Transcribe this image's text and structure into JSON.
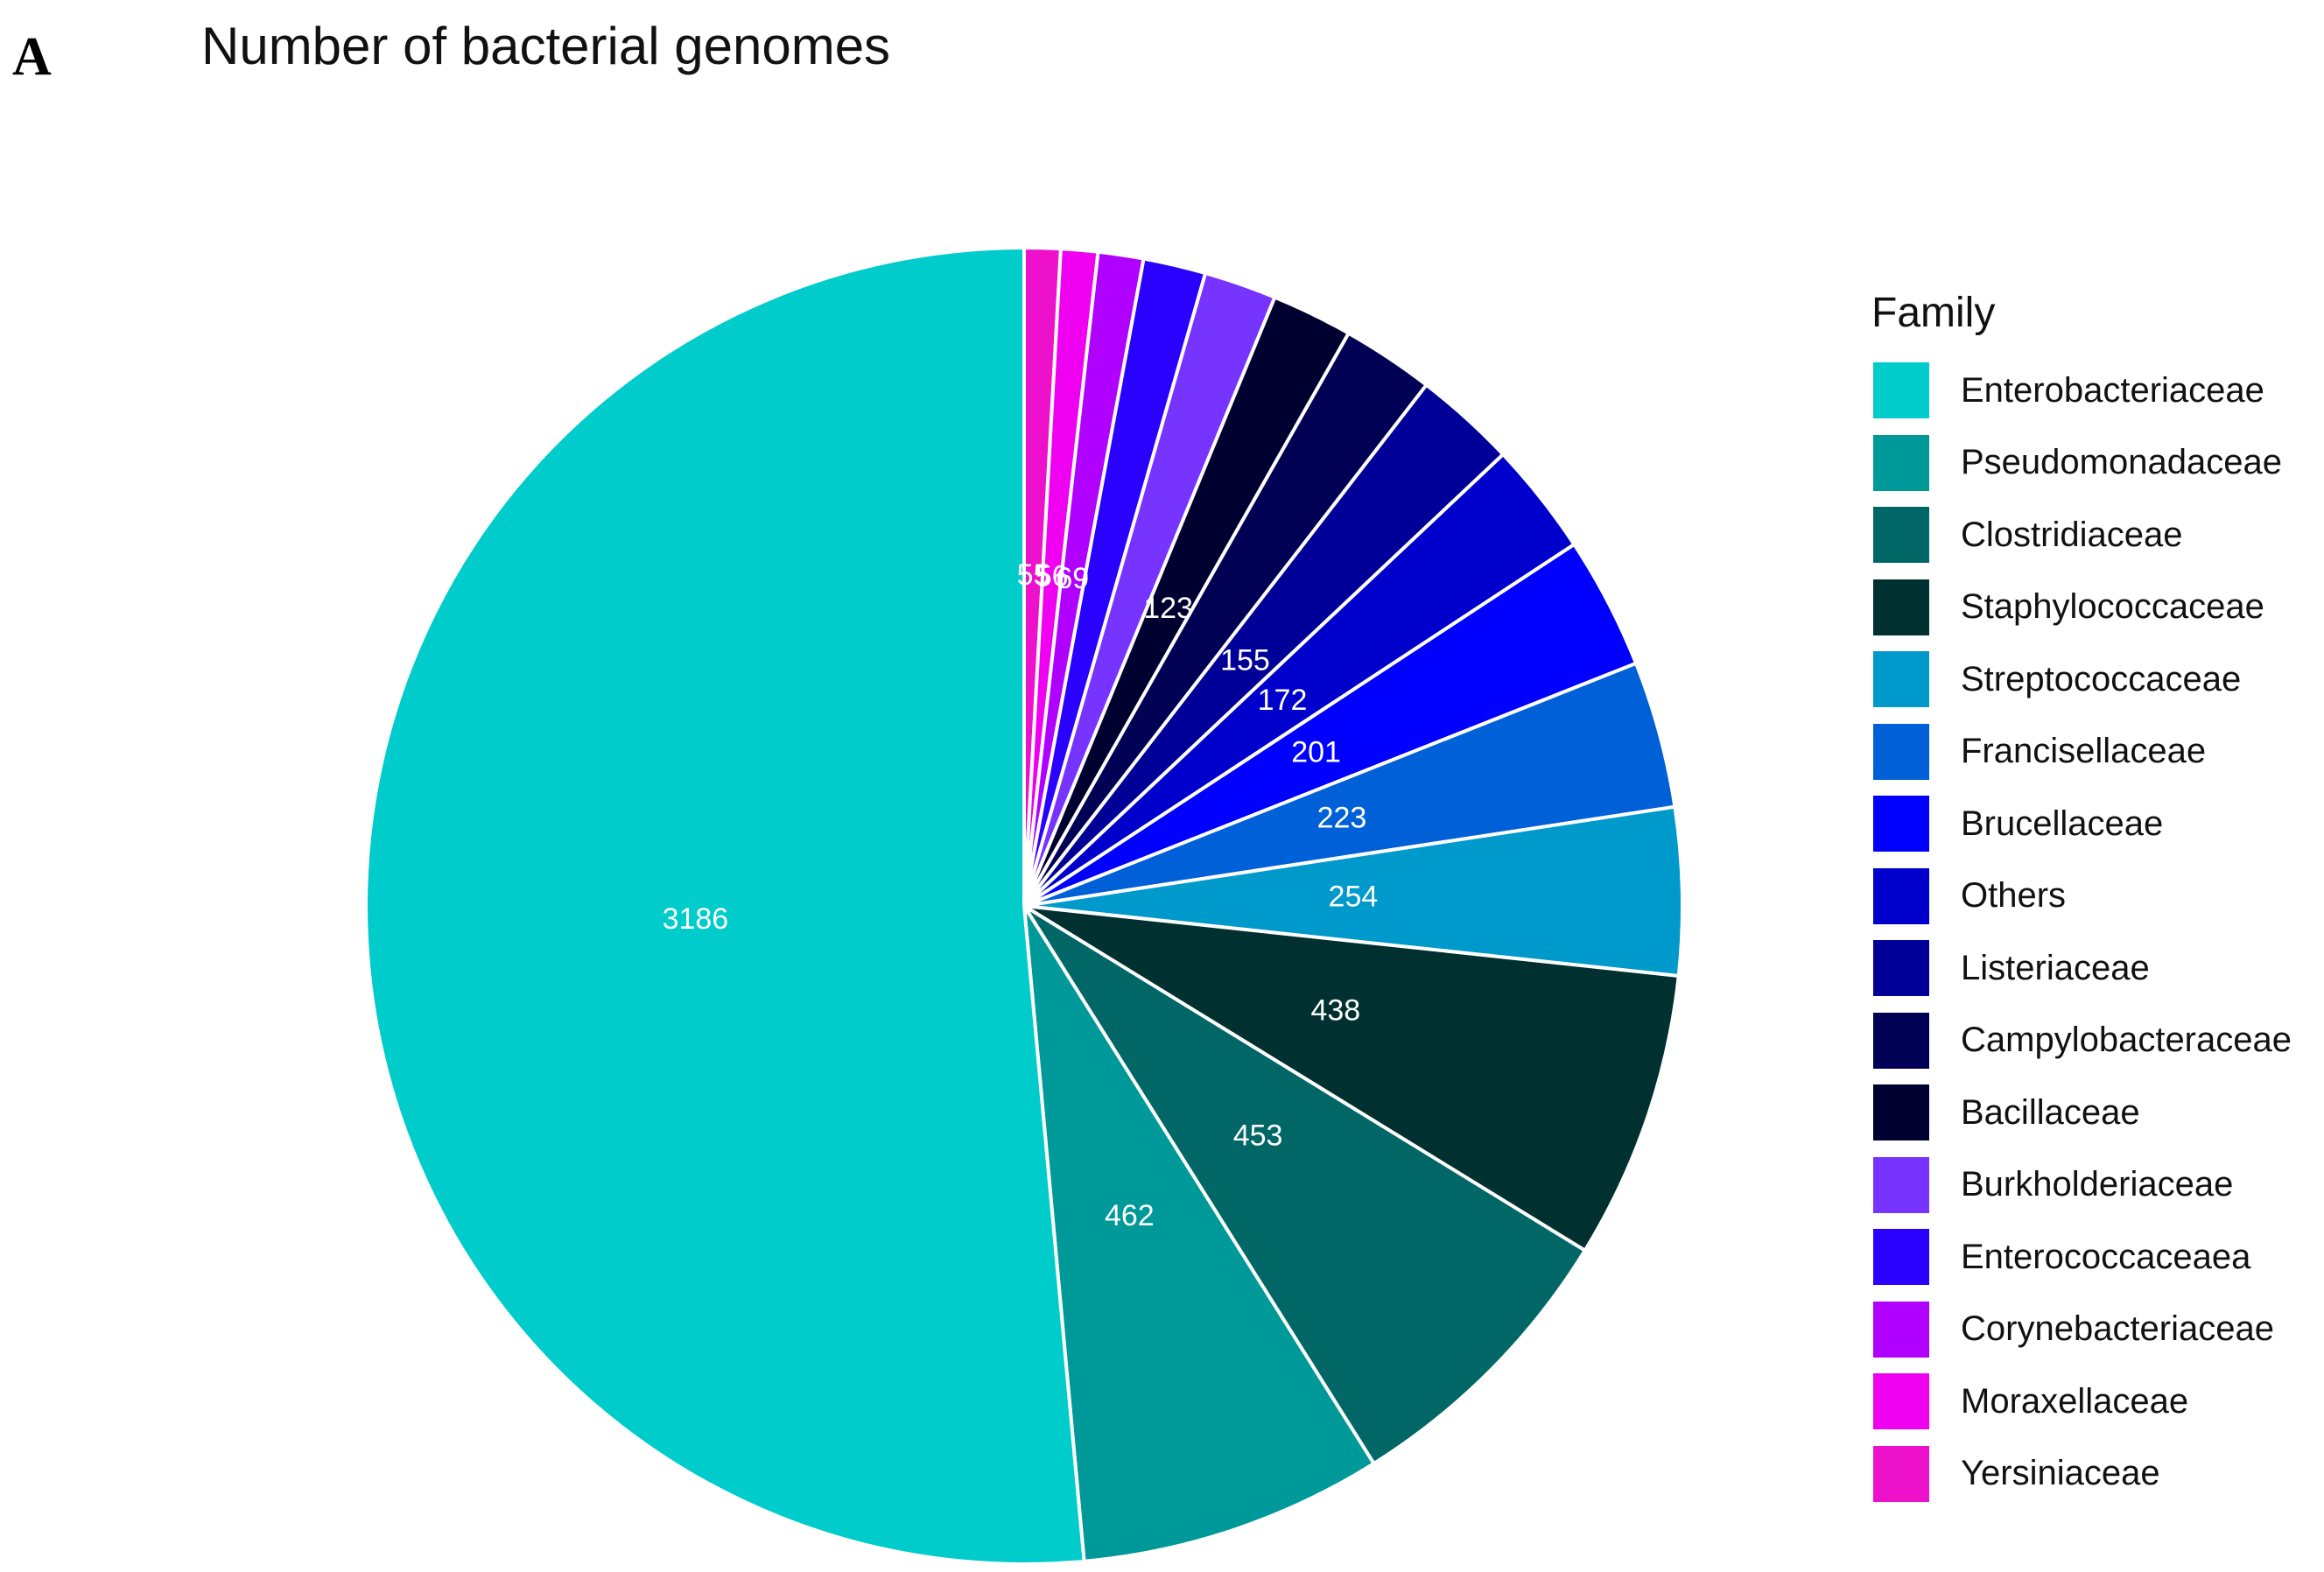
{
  "panel_label": "A",
  "chart_data": {
    "type": "pie",
    "title": "Number of bacterial genomes",
    "legend_title": "Family",
    "legend_position": "right",
    "slices": [
      {
        "name": "Yersiniaceae",
        "value": 55,
        "label": "55",
        "color": "#ee11cc"
      },
      {
        "name": "Moraxellaceae",
        "value": 56,
        "label": "56",
        "color": "#f000f0"
      },
      {
        "name": "Corynebacteriaceae",
        "value": 69,
        "label": "69",
        "color": "#b000ff"
      },
      {
        "name": "Enterococcaceaea",
        "value": 95,
        "label": "",
        "color": "#2a00ff"
      },
      {
        "name": "Burkholderiaceae",
        "value": 110,
        "label": "",
        "color": "#7733ff"
      },
      {
        "name": "Bacillaceae",
        "value": 123,
        "label": "123",
        "color": "#000030"
      },
      {
        "name": "Campylobacteraceae",
        "value": 140,
        "label": "",
        "color": "#000055"
      },
      {
        "name": "Listeriaceae",
        "value": 155,
        "label": "155",
        "color": "#000099"
      },
      {
        "name": "Others",
        "value": 172,
        "label": "172",
        "color": "#0000cc"
      },
      {
        "name": "Brucellaceae",
        "value": 201,
        "label": "201",
        "color": "#0000ff"
      },
      {
        "name": "Francisellaceae",
        "value": 223,
        "label": "223",
        "color": "#0060d8"
      },
      {
        "name": "Streptococcaceae",
        "value": 254,
        "label": "254",
        "color": "#0099cc"
      },
      {
        "name": "Staphylococcaceae",
        "value": 438,
        "label": "438",
        "color": "#003030"
      },
      {
        "name": "Clostridiaceae",
        "value": 453,
        "label": "453",
        "color": "#006666"
      },
      {
        "name": "Pseudomonadaceae",
        "value": 462,
        "label": "462",
        "color": "#009999"
      },
      {
        "name": "Enterobacteriaceae",
        "value": 3186,
        "label": "3186",
        "color": "#00cccc"
      }
    ],
    "legend_order": [
      "Enterobacteriaceae",
      "Pseudomonadaceae",
      "Clostridiaceae",
      "Staphylococcaceae",
      "Streptococcaceae",
      "Francisellaceae",
      "Brucellaceae",
      "Others",
      "Listeriaceae",
      "Campylobacteraceae",
      "Bacillaceae",
      "Burkholderiaceae",
      "Enterococcaceaea",
      "Corynebacteriaceae",
      "Moraxellaceae",
      "Yersiniaceae"
    ]
  }
}
